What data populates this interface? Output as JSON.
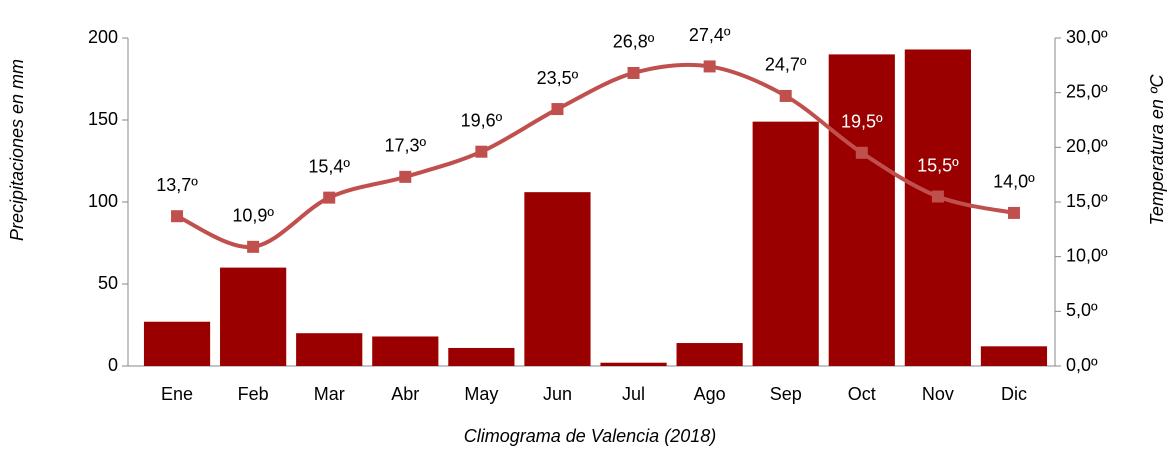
{
  "chart_data": {
    "type": "bar_line",
    "title": "Climograma de Valencia (2018)",
    "ylabel": "Precipitaciones en mm",
    "y2label": "Temperatura en ºC",
    "categories": [
      "Ene",
      "Feb",
      "Mar",
      "Abr",
      "May",
      "Jun",
      "Jul",
      "Ago",
      "Sep",
      "Oct",
      "Nov",
      "Dic"
    ],
    "series": [
      {
        "name": "Precipitaciones",
        "type": "bar",
        "color": "#9b0000",
        "values": [
          27,
          60,
          20,
          18,
          11,
          106,
          2,
          14,
          149,
          190,
          193,
          12
        ]
      },
      {
        "name": "Temperatura",
        "type": "line",
        "axis": "y2",
        "color": "#c0504d",
        "values": [
          13.7,
          10.9,
          15.4,
          17.3,
          19.6,
          23.5,
          26.8,
          27.4,
          24.7,
          19.5,
          15.5,
          14.0
        ],
        "value_labels": [
          "13,7º",
          "10,9º",
          "15,4º",
          "17,3º",
          "19,6º",
          "23,5º",
          "26,8º",
          "27,4º",
          "24,7º",
          "19,5º",
          "15,5º",
          "14,0º"
        ]
      }
    ],
    "ylim": [
      0,
      200
    ],
    "yticks": [
      0,
      50,
      100,
      150,
      200
    ],
    "y2lim": [
      0,
      30
    ],
    "y2ticks": [
      {
        "value": 0,
        "label": "0,0º"
      },
      {
        "value": 5,
        "label": "5,0º"
      },
      {
        "value": 10,
        "label": "10,0º"
      },
      {
        "value": 15,
        "label": "15,0º"
      },
      {
        "value": 20,
        "label": "20,0º"
      },
      {
        "value": 25,
        "label": "25,0º"
      },
      {
        "value": 30,
        "label": "30,0º"
      }
    ]
  }
}
